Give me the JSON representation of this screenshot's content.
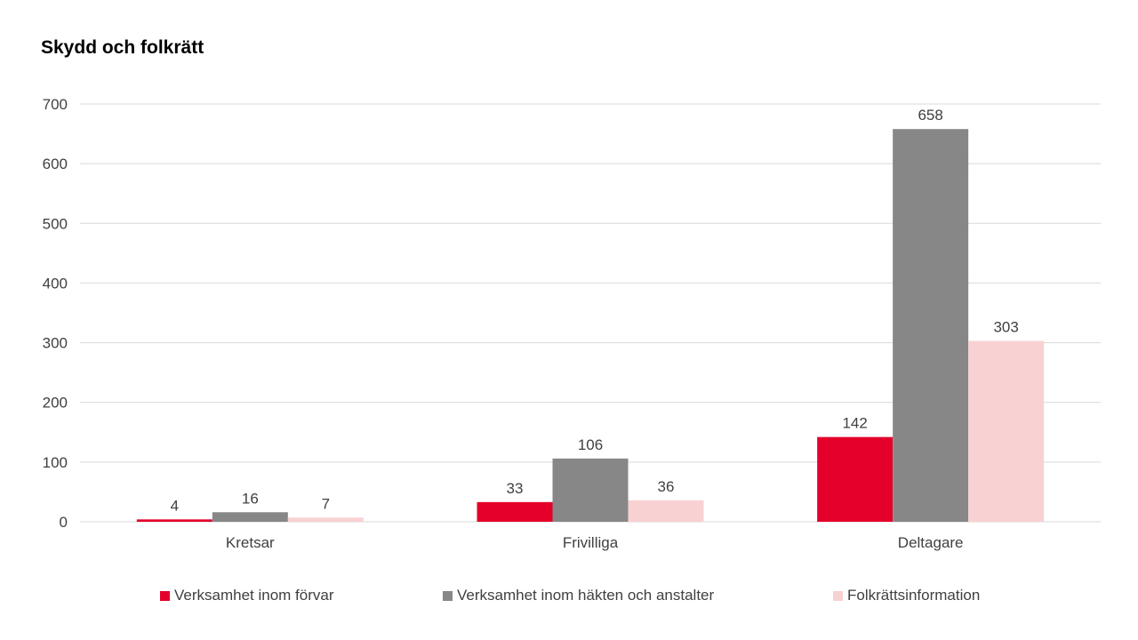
{
  "chart_data": {
    "type": "bar",
    "title": "Skydd och folkrätt",
    "categories": [
      "Kretsar",
      "Frivilliga",
      "Deltagare"
    ],
    "series": [
      {
        "name": "Verksamhet inom förvar",
        "values": [
          4,
          33,
          142
        ],
        "color": "#e4002b"
      },
      {
        "name": "Verksamhet inom häkten och anstalter",
        "values": [
          16,
          106,
          658
        ],
        "color": "#878787"
      },
      {
        "name": "Folkrättsinformation",
        "values": [
          7,
          36,
          303
        ],
        "color": "#f8d2d3"
      }
    ],
    "ylim": [
      0,
      700
    ],
    "yticks": [
      0,
      100,
      200,
      300,
      400,
      500,
      600,
      700
    ],
    "grid": true,
    "data_labels": true,
    "legend_position": "bottom"
  }
}
